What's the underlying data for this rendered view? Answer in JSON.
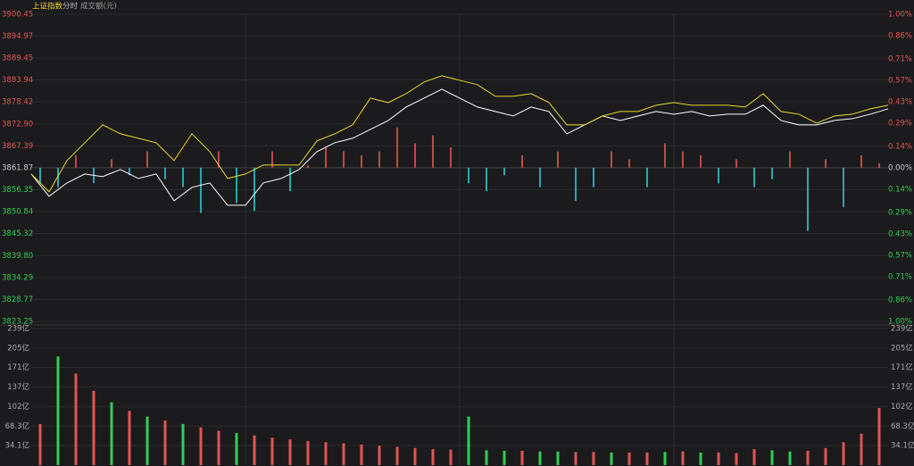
{
  "header": {
    "title": "上证指数",
    "tab": "分时",
    "volume_label": "成交额(元)"
  },
  "chart_data": {
    "type": "line",
    "x_count": 49,
    "ylim": [
      3823.25,
      3900.45
    ],
    "yticks": [
      3900.45,
      3894.97,
      3889.45,
      3883.94,
      3878.42,
      {
        "value": 3872.9,
        "label": "3872.90"
      },
      3867.39,
      3861.87,
      3856.35,
      3850.84,
      3845.32,
      {
        "value": 3839.8,
        "label": "3839.80"
      },
      3834.29,
      3828.77,
      3823.25
    ],
    "y2lim": [
      -1,
      1
    ],
    "y2ticks": [
      {
        "value": 1,
        "label": "1.00%"
      },
      {
        "value": 0.86,
        "label": "0.86%"
      },
      {
        "value": 0.71,
        "label": "0.71%"
      },
      {
        "value": 0.57,
        "label": "0.57%"
      },
      {
        "value": 0.43,
        "label": "0.43%"
      },
      {
        "value": 0.29,
        "label": "0.29%"
      },
      {
        "value": 0.14,
        "label": "0.14%"
      },
      {
        "value": 0,
        "label": "0.00%"
      },
      {
        "value": -0.14,
        "label": "0.14%"
      },
      {
        "value": -0.29,
        "label": "0.29%"
      },
      {
        "value": -0.43,
        "label": "0.43%"
      },
      {
        "value": -0.57,
        "label": "0.57%"
      },
      {
        "value": -0.71,
        "label": "0.71%"
      },
      {
        "value": -0.86,
        "label": "0.86%"
      },
      {
        "value": -1,
        "label": "1.00%"
      }
    ],
    "up_color": "#e05555",
    "down_color": "#33cc55",
    "flat_color": "#cccccc",
    "series": [
      {
        "color": "#ffffff",
        "values": [
          3860.3,
          3854.69,
          3858.06,
          3860.3,
          3859.63,
          3861.42,
          3859.18,
          3860.3,
          3853.57,
          3856.93,
          3858.06,
          3852.45,
          3852.45,
          3858.06,
          3859.18,
          3861.42,
          3865.91,
          3868.15,
          3869.28,
          3871.52,
          3873.76,
          3877.13,
          3879.37,
          3881.62,
          3879.37,
          3877.13,
          3876.01,
          3874.89,
          3877.13,
          3876.01,
          3870.4,
          3872.64,
          3874.89,
          3873.76,
          3874.89,
          3876.01,
          3875.33,
          3876.01,
          3874.89,
          3875.33,
          3875.33,
          3877.58,
          3873.76,
          3872.64,
          3872.64,
          3873.76,
          3874.21,
          3875.33,
          3876.68
        ]
      },
      {
        "color": "#e8d930",
        "values": [
          3860.3,
          3855.81,
          3863.67,
          3868.15,
          3872.64,
          3870.4,
          3869.28,
          3868.15,
          3863.67,
          3870.4,
          3865.91,
          3859.18,
          3860.3,
          3862.54,
          3862.54,
          3862.54,
          3868.6,
          3870.4,
          3872.64,
          3879.37,
          3878.25,
          3880.5,
          3883.41,
          3884.98,
          3883.86,
          3882.74,
          3879.82,
          3879.82,
          3880.5,
          3878.25,
          3872.64,
          3872.64,
          3874.89,
          3876.01,
          3876.01,
          3877.58,
          3878.25,
          3877.58,
          3877.58,
          3877.58,
          3877.13,
          3880.5,
          3876.01,
          3875.33,
          3873.09,
          3874.89,
          3875.33,
          3876.68,
          3877.58
        ]
      }
    ],
    "momentum": {
      "up_color": "#c04848",
      "down_color": "#2aa8b0",
      "values": [
        3858,
        3857,
        3865,
        3858,
        3864,
        3860,
        3866,
        3859,
        3857,
        3850.5,
        3866,
        3853,
        3851,
        3866,
        3856,
        3862.5,
        3867,
        3866,
        3865,
        3866,
        3872,
        3868,
        3870,
        3867,
        3858,
        3856,
        3860,
        3865,
        3857,
        3866,
        3853.5,
        3857,
        3866,
        3864,
        3857,
        3868,
        3866,
        3865,
        3858,
        3864,
        3857,
        3859,
        3866,
        3846,
        3864,
        3852,
        3865,
        3863
      ]
    },
    "volume": {
      "ylim": [
        0,
        239
      ],
      "yticks": [
        {
          "value": 239,
          "label": "239亿"
        },
        {
          "value": 205,
          "label": "205亿"
        },
        {
          "value": 171,
          "label": "171亿"
        },
        {
          "value": 137,
          "label": "137亿"
        },
        {
          "value": 102,
          "label": "102亿"
        },
        {
          "value": 68.3,
          "label": "68.3亿"
        },
        {
          "value": 34.1,
          "label": "34.1亿"
        }
      ],
      "values": [
        72,
        190,
        160,
        130,
        110,
        95,
        85,
        78,
        72,
        66,
        60,
        56,
        52,
        48,
        45,
        42,
        40,
        38,
        36,
        34,
        32,
        30,
        28,
        27,
        85,
        26,
        25,
        25,
        24,
        24,
        23,
        23,
        22,
        22,
        22,
        23,
        24,
        22,
        22,
        21,
        28,
        26,
        24,
        25,
        30,
        40,
        55,
        100
      ]
    }
  }
}
